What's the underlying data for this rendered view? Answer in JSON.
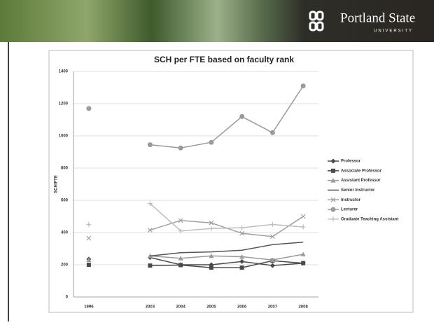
{
  "header": {
    "logo_name": "Portland State",
    "logo_sub": "UNIVERSITY"
  },
  "chart_data": {
    "type": "line",
    "title": "SCH per FTE based on faculty rank",
    "y_label": "SCH/FTE",
    "categories": [
      "1996",
      null,
      "2003",
      "2004",
      "2005",
      "2006",
      "2007",
      "2008"
    ],
    "ylim": [
      0,
      1400
    ],
    "yticks": [
      0,
      200,
      400,
      600,
      800,
      1000,
      1200,
      1400
    ],
    "grid": true,
    "legend": "right",
    "series": [
      {
        "name": "Professor",
        "color": "#4a4a4a",
        "marker": "diamond",
        "values": [
          235,
          null,
          245,
          200,
          200,
          220,
          195,
          210
        ]
      },
      {
        "name": "Associate Professor",
        "color": "#4a4a4a",
        "marker": "square",
        "values": [
          200,
          null,
          195,
          198,
          182,
          182,
          225,
          210
        ]
      },
      {
        "name": "Assistant Professor",
        "color": "#9a9a9a",
        "marker": "triangle",
        "values": [
          230,
          null,
          255,
          240,
          255,
          250,
          230,
          265
        ]
      },
      {
        "name": "Senior Instructor",
        "color": "#555555",
        "marker": "none",
        "values": [
          null,
          null,
          255,
          275,
          280,
          290,
          325,
          340
        ]
      },
      {
        "name": "Instructor",
        "color": "#a0a0a0",
        "marker": "x",
        "values": [
          365,
          null,
          415,
          475,
          460,
          395,
          375,
          500
        ]
      },
      {
        "name": "Lecturer",
        "color": "#9a9a9a",
        "marker": "circle",
        "values": [
          1170,
          null,
          945,
          925,
          960,
          1120,
          1020,
          1310
        ]
      },
      {
        "name": "Graduate Teaching Assistant",
        "color": "#bdbdbd",
        "marker": "plus",
        "values": [
          450,
          null,
          580,
          410,
          425,
          430,
          450,
          435
        ]
      }
    ]
  }
}
